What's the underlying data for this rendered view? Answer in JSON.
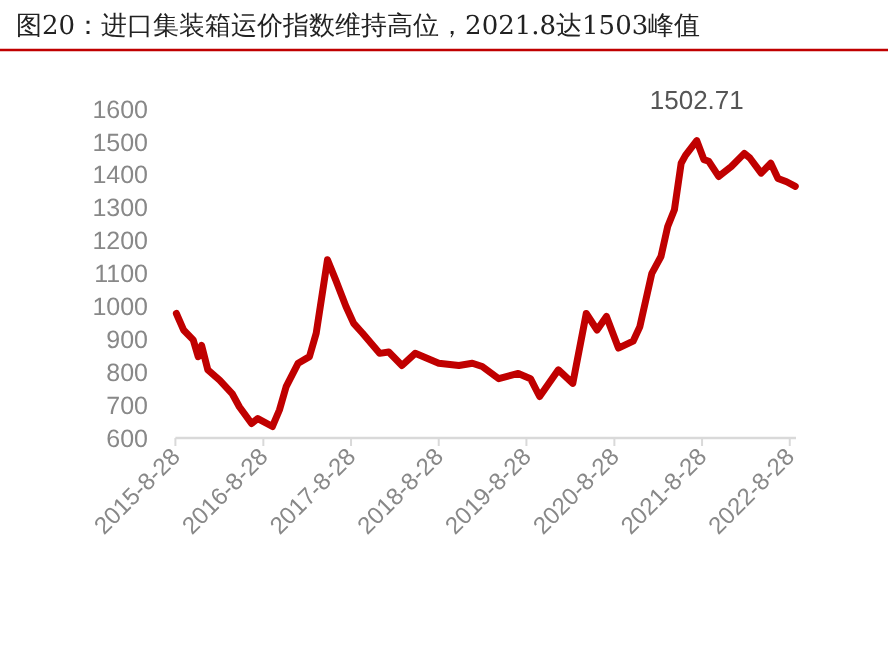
{
  "chart_data": {
    "type": "line",
    "title": "图20：进口集装箱运价指数维持高位，2021.8达1503峰值",
    "annotations": [
      {
        "text": "1502.71",
        "x": "2021-08-06",
        "y": 1502.71
      }
    ],
    "x": [
      "2015-09-01",
      "2015-10-01",
      "2015-11-10",
      "2015-12-01",
      "2015-12-15",
      "2016-01-10",
      "2016-02-28",
      "2016-04-20",
      "2016-05-20",
      "2016-07-10",
      "2016-08-05",
      "2016-10-05",
      "2016-11-03",
      "2016-12-01",
      "2017-01-20",
      "2017-03-08",
      "2017-04-05",
      "2017-05-22",
      "2017-06-25",
      "2017-08-07",
      "2017-09-08",
      "2017-10-15",
      "2017-12-25",
      "2018-02-01",
      "2018-03-28",
      "2018-05-22",
      "2018-08-28",
      "2018-11-20",
      "2019-01-15",
      "2019-02-25",
      "2019-05-05",
      "2019-07-25",
      "2019-09-14",
      "2019-10-22",
      "2020-01-08",
      "2020-03-08",
      "2020-05-03",
      "2020-06-17",
      "2020-07-26",
      "2020-09-14",
      "2020-11-14",
      "2020-12-12",
      "2021-01-31",
      "2021-03-10",
      "2021-04-07",
      "2021-05-05",
      "2021-06-02",
      "2021-06-20",
      "2021-08-06",
      "2021-09-05",
      "2021-09-25",
      "2021-11-05",
      "2021-12-28",
      "2022-02-20",
      "2022-03-15",
      "2022-05-01",
      "2022-06-10",
      "2022-07-10",
      "2022-08-15",
      "2022-09-20"
    ],
    "values": [
      978,
      928,
      898,
      847,
      881,
      807,
      776,
      735,
      695,
      644,
      659,
      635,
      685,
      756,
      827,
      847,
      918,
      1141,
      1080,
      999,
      948,
      918,
      857,
      861,
      820,
      857,
      827,
      820,
      827,
      817,
      780,
      796,
      780,
      726,
      807,
      766,
      978,
      928,
      969,
      873,
      894,
      938,
      1100,
      1151,
      1242,
      1293,
      1434,
      1458,
      1502.71,
      1445,
      1440,
      1394,
      1424,
      1464,
      1450,
      1404,
      1434,
      1388,
      1378,
      1364
    ],
    "color": "#c00000",
    "xlim": [
      "2015-08-28",
      "2022-09-23"
    ],
    "xticks": [
      {
        "value": "2015-08-28",
        "label": "2015-8-28"
      },
      {
        "value": "2016-08-28",
        "label": "2016-8-28"
      },
      {
        "value": "2017-08-28",
        "label": "2017-8-28"
      },
      {
        "value": "2018-08-28",
        "label": "2018-8-28"
      },
      {
        "value": "2019-08-28",
        "label": "2019-8-28"
      },
      {
        "value": "2020-08-28",
        "label": "2020-8-28"
      },
      {
        "value": "2021-08-28",
        "label": "2021-8-28"
      },
      {
        "value": "2022-08-28",
        "label": "2022-8-28"
      }
    ],
    "ylim": [
      600,
      1600
    ],
    "yticks": [
      600,
      700,
      800,
      900,
      1000,
      1100,
      1200,
      1300,
      1400,
      1500,
      1600
    ]
  }
}
